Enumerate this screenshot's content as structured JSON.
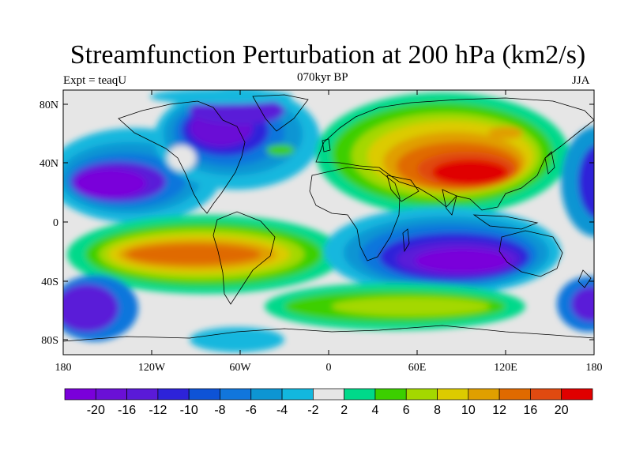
{
  "title": "Streamfunction Perturbation at 200 hPa (km2/s)",
  "left_string": "Expt = teaqU",
  "center_string": "070kyr BP",
  "right_string": "JJA",
  "lon_ticks": [
    "180",
    "120W",
    "60W",
    "0",
    "60E",
    "120E",
    "180"
  ],
  "lat_ticks": [
    "80N",
    "40N",
    "0",
    "40S",
    "80S"
  ],
  "colorbar": {
    "colors": [
      "#7a00da",
      "#6a10d6",
      "#5a1ad8",
      "#2d23d9",
      "#0e53d6",
      "#1176dc",
      "#0d95d3",
      "#12b7de",
      "#e6e6e6",
      "#00d98a",
      "#3ccf00",
      "#a4d800",
      "#dccb00",
      "#e09f00",
      "#e06a00",
      "#e04a10",
      "#e00000"
    ],
    "labels": [
      "-20",
      "-16",
      "-12",
      "-10",
      "-8",
      "-6",
      "-4",
      "-2",
      "2",
      "4",
      "6",
      "8",
      "10",
      "12",
      "16",
      "20"
    ]
  }
}
